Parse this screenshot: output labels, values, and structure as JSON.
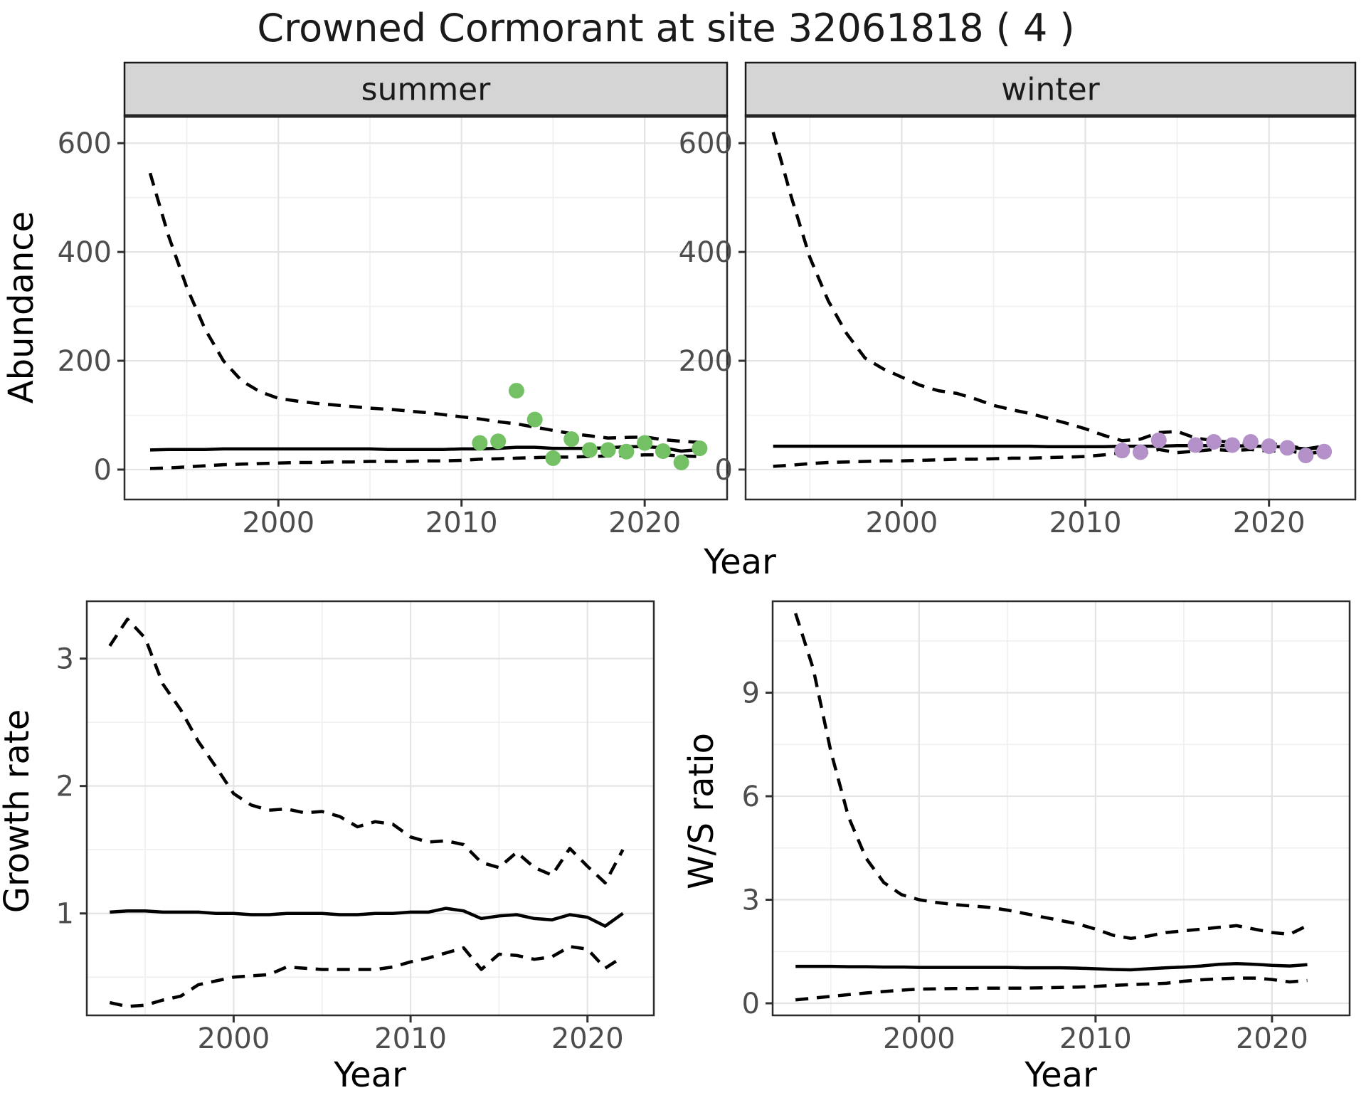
{
  "title": "Crowned Cormorant at site 32061818 ( 4 )",
  "axes": {
    "x_label": "Year",
    "y_top_label": "Abundance",
    "y_growth_label": "Growth rate",
    "y_ws_label": "W/S ratio"
  },
  "colors": {
    "summer_point": "#74c165",
    "winter_point": "#b491c8",
    "line": "#000000",
    "strip_fill": "#d5d5d5",
    "strip_border": "#1a1a1a",
    "panel_border": "#2b2b2b",
    "grid_major": "#e4e4e4",
    "grid_minor": "#efefef",
    "tick_mark": "#333333",
    "tick_label": "#4d4d4d"
  },
  "chart_data": [
    {
      "id": "summer",
      "type": "line",
      "facet_label": "summer",
      "xlabel": "Year",
      "ylabel": "Abundance",
      "xlim": [
        1991.6,
        2024.5
      ],
      "ylim": [
        -55,
        650
      ],
      "x_ticks": [
        2000,
        2010,
        2020
      ],
      "y_ticks": [
        0,
        200,
        400,
        600
      ],
      "minor_x": [
        1995,
        2005,
        2015
      ],
      "minor_y": [
        100,
        300,
        500
      ],
      "x": [
        1993,
        1994,
        1995,
        1996,
        1997,
        1998,
        1999,
        2000,
        2001,
        2002,
        2003,
        2004,
        2005,
        2006,
        2007,
        2008,
        2009,
        2010,
        2011,
        2012,
        2013,
        2014,
        2015,
        2016,
        2017,
        2018,
        2019,
        2020,
        2021,
        2022,
        2023
      ],
      "series": [
        {
          "name": "fit",
          "style": "solid",
          "values": [
            36,
            37,
            37,
            37,
            38,
            38,
            38,
            38,
            38,
            38,
            38,
            38,
            38,
            37,
            37,
            37,
            37,
            38,
            38,
            39,
            41,
            41,
            39,
            39,
            39,
            40,
            42,
            42,
            40,
            34,
            37
          ]
        },
        {
          "name": "upper_ci",
          "style": "dashed",
          "values": [
            545,
            430,
            335,
            258,
            200,
            163,
            143,
            131,
            126,
            122,
            119,
            116,
            113,
            111,
            108,
            105,
            101,
            97,
            93,
            88,
            84,
            78,
            72,
            66,
            62,
            58,
            59,
            60,
            55,
            52,
            50
          ]
        },
        {
          "name": "lower_ci",
          "style": "dashed",
          "values": [
            2,
            3,
            5,
            7,
            9,
            10,
            11,
            12,
            13,
            13,
            14,
            14,
            15,
            15,
            15,
            16,
            16,
            17,
            19,
            20,
            21,
            22,
            23,
            23,
            24,
            25,
            26,
            27,
            27,
            25,
            24
          ]
        }
      ],
      "points": {
        "name": "observed-counts",
        "color": "#74c165",
        "x": [
          2011,
          2012,
          2013,
          2014,
          2015,
          2016,
          2017,
          2018,
          2019,
          2020,
          2021,
          2022,
          2023
        ],
        "y": [
          49,
          52,
          145,
          92,
          21,
          56,
          36,
          36,
          33,
          49,
          34,
          13,
          39
        ]
      }
    },
    {
      "id": "winter",
      "type": "line",
      "facet_label": "winter",
      "xlabel": "Year",
      "ylabel": "Abundance",
      "xlim": [
        1991.5,
        2024.7
      ],
      "ylim": [
        -55,
        650
      ],
      "x_ticks": [
        2000,
        2010,
        2020
      ],
      "y_ticks": [
        0,
        200,
        400,
        600
      ],
      "minor_x": [
        1995,
        2005,
        2015
      ],
      "minor_y": [
        100,
        300,
        500
      ],
      "x": [
        1993,
        1994,
        1995,
        1996,
        1997,
        1998,
        1999,
        2000,
        2001,
        2002,
        2003,
        2004,
        2005,
        2006,
        2007,
        2008,
        2009,
        2010,
        2011,
        2012,
        2013,
        2014,
        2015,
        2016,
        2017,
        2018,
        2019,
        2020,
        2021,
        2022,
        2023
      ],
      "series": [
        {
          "name": "fit",
          "style": "solid",
          "values": [
            43,
            43,
            43,
            43,
            43,
            43,
            43,
            43,
            43,
            43,
            43,
            43,
            43,
            43,
            43,
            42,
            42,
            42,
            42,
            43,
            43,
            43,
            44,
            44,
            44,
            44,
            43,
            43,
            41,
            38,
            40
          ]
        },
        {
          "name": "upper_ci",
          "style": "dashed",
          "values": [
            620,
            500,
            390,
            310,
            250,
            205,
            185,
            170,
            155,
            145,
            140,
            130,
            118,
            110,
            103,
            94,
            85,
            75,
            63,
            53,
            56,
            68,
            70,
            58,
            53,
            50,
            48,
            48,
            44,
            38,
            43
          ]
        },
        {
          "name": "lower_ci",
          "style": "dashed",
          "values": [
            6,
            8,
            11,
            13,
            14,
            15,
            16,
            16,
            17,
            18,
            19,
            19,
            20,
            21,
            21,
            22,
            23,
            24,
            27,
            31,
            29,
            37,
            31,
            34,
            37,
            35,
            37,
            34,
            35,
            29,
            33
          ]
        }
      ],
      "points": {
        "name": "observed-counts",
        "color": "#b491c8",
        "x": [
          2012,
          2013,
          2014,
          2016,
          2017,
          2018,
          2019,
          2020,
          2021,
          2022,
          2023
        ],
        "y": [
          35,
          32,
          54,
          45,
          51,
          45,
          51,
          43,
          40,
          26,
          33
        ]
      }
    },
    {
      "id": "growth",
      "type": "line",
      "facet_label": "",
      "xlabel": "Year",
      "ylabel": "Growth rate",
      "xlim": [
        1991.7,
        2023.75
      ],
      "ylim": [
        0.2,
        3.45
      ],
      "x_ticks": [
        2000,
        2010,
        2020
      ],
      "y_ticks": [
        1,
        2,
        3
      ],
      "minor_x": [
        1995,
        2005,
        2015
      ],
      "minor_y": [
        0.5,
        1.5,
        2.5
      ],
      "x": [
        1993,
        1994,
        1995,
        1996,
        1997,
        1998,
        1999,
        2000,
        2001,
        2002,
        2003,
        2004,
        2005,
        2006,
        2007,
        2008,
        2009,
        2010,
        2011,
        2012,
        2013,
        2014,
        2015,
        2016,
        2017,
        2018,
        2019,
        2020,
        2021,
        2022
      ],
      "series": [
        {
          "name": "fit",
          "style": "solid",
          "values": [
            1.01,
            1.02,
            1.02,
            1.01,
            1.01,
            1.01,
            1.0,
            1.0,
            0.99,
            0.99,
            1.0,
            1.0,
            1.0,
            0.99,
            0.99,
            1.0,
            1.0,
            1.01,
            1.01,
            1.04,
            1.02,
            0.96,
            0.98,
            0.99,
            0.96,
            0.95,
            0.99,
            0.97,
            0.9,
            1.0
          ]
        },
        {
          "name": "upper_ci",
          "style": "dashed",
          "values": [
            3.1,
            3.31,
            3.16,
            2.8,
            2.6,
            2.35,
            2.15,
            1.94,
            1.85,
            1.81,
            1.82,
            1.79,
            1.8,
            1.76,
            1.68,
            1.72,
            1.7,
            1.6,
            1.56,
            1.57,
            1.54,
            1.4,
            1.36,
            1.48,
            1.36,
            1.3,
            1.51,
            1.37,
            1.24,
            1.5
          ]
        },
        {
          "name": "lower_ci",
          "style": "dashed",
          "values": [
            0.3,
            0.27,
            0.28,
            0.32,
            0.35,
            0.44,
            0.47,
            0.5,
            0.51,
            0.52,
            0.58,
            0.57,
            0.56,
            0.56,
            0.56,
            0.56,
            0.58,
            0.62,
            0.65,
            0.69,
            0.73,
            0.56,
            0.68,
            0.67,
            0.64,
            0.66,
            0.74,
            0.72,
            0.57,
            0.66
          ]
        }
      ]
    },
    {
      "id": "ws",
      "type": "line",
      "facet_label": "",
      "xlabel": "Year",
      "ylabel": "W/S ratio",
      "xlim": [
        1991.7,
        2024.4
      ],
      "ylim": [
        -0.35,
        11.65
      ],
      "x_ticks": [
        2000,
        2010,
        2020
      ],
      "y_ticks": [
        0,
        3,
        6,
        9
      ],
      "minor_x": [
        1995,
        2005,
        2015
      ],
      "minor_y": [
        1.5,
        4.5,
        7.5,
        10.5
      ],
      "x": [
        1993,
        1994,
        1995,
        1996,
        1997,
        1998,
        1999,
        2000,
        2001,
        2002,
        2003,
        2004,
        2005,
        2006,
        2007,
        2008,
        2009,
        2010,
        2011,
        2012,
        2013,
        2014,
        2015,
        2016,
        2017,
        2018,
        2019,
        2020,
        2021,
        2022
      ],
      "series": [
        {
          "name": "fit",
          "style": "solid",
          "values": [
            1.07,
            1.07,
            1.07,
            1.06,
            1.06,
            1.05,
            1.05,
            1.04,
            1.04,
            1.04,
            1.04,
            1.04,
            1.04,
            1.03,
            1.03,
            1.03,
            1.02,
            1.0,
            0.98,
            0.97,
            1.0,
            1.03,
            1.05,
            1.08,
            1.13,
            1.15,
            1.13,
            1.1,
            1.08,
            1.12
          ]
        },
        {
          "name": "upper_ci",
          "style": "dashed",
          "values": [
            11.3,
            9.7,
            7.3,
            5.4,
            4.2,
            3.5,
            3.15,
            3.0,
            2.92,
            2.86,
            2.82,
            2.78,
            2.7,
            2.6,
            2.5,
            2.4,
            2.3,
            2.15,
            1.97,
            1.88,
            1.95,
            2.05,
            2.1,
            2.15,
            2.2,
            2.25,
            2.15,
            2.05,
            2.0,
            2.25
          ]
        },
        {
          "name": "lower_ci",
          "style": "dashed",
          "values": [
            0.1,
            0.15,
            0.2,
            0.25,
            0.3,
            0.34,
            0.38,
            0.41,
            0.42,
            0.43,
            0.43,
            0.44,
            0.44,
            0.44,
            0.45,
            0.46,
            0.47,
            0.49,
            0.52,
            0.54,
            0.56,
            0.58,
            0.64,
            0.68,
            0.71,
            0.73,
            0.73,
            0.69,
            0.62,
            0.66
          ]
        }
      ]
    }
  ]
}
